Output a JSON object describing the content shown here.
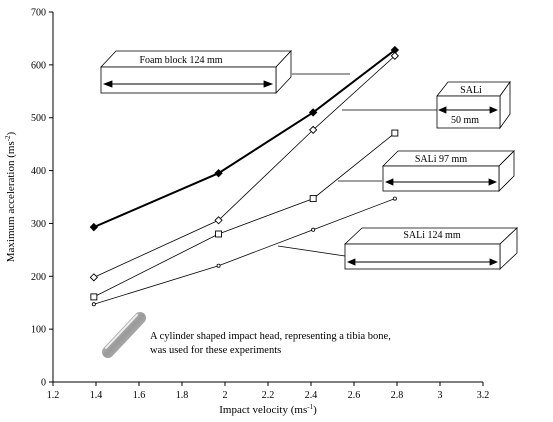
{
  "chart_data": {
    "type": "line",
    "title": "",
    "xlabel": "Impact velocity (ms",
    "xlabel_sup": "-1",
    "xlabel_end": ")",
    "ylabel": "Maximum acceleration (ms",
    "ylabel_sup": "-2",
    "ylabel_end": ")",
    "xlim": [
      1.2,
      3.2
    ],
    "ylim": [
      0,
      700
    ],
    "x_ticks": [
      "1.2",
      "1.4",
      "1.6",
      "1.8",
      "2",
      "2.2",
      "2.4",
      "2.6",
      "2.8",
      "3",
      "3.2"
    ],
    "y_ticks": [
      "0",
      "100",
      "200",
      "300",
      "400",
      "500",
      "600",
      "700"
    ],
    "grid": false,
    "series": [
      {
        "name": "Foam block 124 mm",
        "marker": "filled-diamond",
        "line": "thick",
        "x": [
          1.39,
          1.97,
          2.41,
          2.79
        ],
        "y": [
          293,
          395,
          510,
          628
        ]
      },
      {
        "name": "SALi 50 mm",
        "marker": "open-diamond",
        "line": "thin",
        "x": [
          1.39,
          1.97,
          2.41,
          2.79
        ],
        "y": [
          198,
          306,
          477,
          617
        ]
      },
      {
        "name": "SALi 97 mm",
        "marker": "open-square",
        "line": "thin",
        "x": [
          1.39,
          1.97,
          2.41,
          2.79
        ],
        "y": [
          161,
          280,
          347,
          471
        ]
      },
      {
        "name": "SALi 124 mm",
        "marker": "small-circle",
        "line": "thin",
        "x": [
          1.39,
          1.97,
          2.41,
          2.79
        ],
        "y": [
          147,
          220,
          288,
          347
        ]
      }
    ],
    "annotation": {
      "lines": [
        "A cylinder shaped impact head, representing a tibia bone,",
        "was used for these experiments"
      ]
    },
    "legend_boxes": {
      "foam": {
        "label": "Foam block 124 mm"
      },
      "sali": {
        "label": "SALi",
        "sublabel": "50 mm"
      },
      "sali97": {
        "label": "SALi 97 mm"
      },
      "sali124": {
        "label": "SALi 124 mm"
      }
    }
  }
}
